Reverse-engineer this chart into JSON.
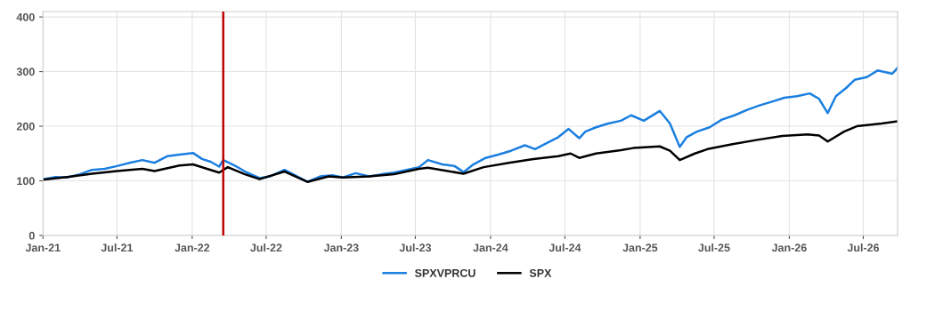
{
  "chart_data": {
    "type": "line",
    "xlim": [
      "2021-01-01",
      "2026-09-23"
    ],
    "xticks": [
      {
        "value": "2021-01-01",
        "label": "Jan-21"
      },
      {
        "value": "2021-07-01",
        "label": "Jul-21"
      },
      {
        "value": "2022-01-01",
        "label": "Jan-22"
      },
      {
        "value": "2022-07-01",
        "label": "Jul-22"
      },
      {
        "value": "2023-01-01",
        "label": "Jan-23"
      },
      {
        "value": "2023-07-01",
        "label": "Jul-23"
      },
      {
        "value": "2024-01-01",
        "label": "Jan-24"
      },
      {
        "value": "2024-07-01",
        "label": "Jul-24"
      },
      {
        "value": "2025-01-01",
        "label": "Jan-25"
      },
      {
        "value": "2025-07-01",
        "label": "Jul-25"
      },
      {
        "value": "2026-01-01",
        "label": "Jan-26"
      },
      {
        "value": "2026-07-01",
        "label": "Jul-26"
      }
    ],
    "ylim": [
      0,
      410
    ],
    "yticks": [
      0,
      100,
      200,
      300,
      400
    ],
    "grid": true,
    "legend": "bottom",
    "marker": "none",
    "line_style": "solid",
    "ref_lines": [
      {
        "axis": "x",
        "value": "2022-03-18",
        "color": "#c00000"
      }
    ],
    "series": [
      {
        "name": "SPXVPRCU",
        "color": "#1a7fe0",
        "x": [
          "2021-01-01",
          "2021-02-01",
          "2021-03-01",
          "2021-04-01",
          "2021-05-01",
          "2021-06-01",
          "2021-07-01",
          "2021-08-01",
          "2021-09-01",
          "2021-10-01",
          "2021-11-01",
          "2021-12-01",
          "2022-01-03",
          "2022-01-25",
          "2022-02-15",
          "2022-03-08",
          "2022-03-18",
          "2022-04-15",
          "2022-05-15",
          "2022-06-15",
          "2022-07-10",
          "2022-08-15",
          "2022-09-10",
          "2022-10-10",
          "2022-11-10",
          "2022-12-10",
          "2023-01-05",
          "2023-02-05",
          "2023-03-10",
          "2023-04-10",
          "2023-05-10",
          "2023-06-10",
          "2023-07-10",
          "2023-08-01",
          "2023-09-05",
          "2023-10-05",
          "2023-10-27",
          "2023-11-20",
          "2023-12-20",
          "2024-01-20",
          "2024-02-20",
          "2024-03-25",
          "2024-04-19",
          "2024-05-15",
          "2024-06-15",
          "2024-07-10",
          "2024-08-05",
          "2024-08-20",
          "2024-09-15",
          "2024-10-15",
          "2024-11-15",
          "2024-12-10",
          "2025-01-10",
          "2025-02-18",
          "2025-03-15",
          "2025-04-08",
          "2025-04-25",
          "2025-05-20",
          "2025-06-20",
          "2025-07-20",
          "2025-08-20",
          "2025-09-20",
          "2025-10-20",
          "2025-11-20",
          "2025-12-20",
          "2026-01-20",
          "2026-02-20",
          "2026-03-15",
          "2026-04-05",
          "2026-04-25",
          "2026-05-20",
          "2026-06-10",
          "2026-07-10",
          "2026-08-05",
          "2026-09-10",
          "2026-09-23"
        ],
        "values": [
          103,
          107,
          106,
          112,
          120,
          122,
          127,
          133,
          138,
          133,
          145,
          148,
          151,
          140,
          135,
          126,
          138,
          128,
          115,
          105,
          108,
          120,
          110,
          98,
          108,
          110,
          106,
          114,
          108,
          112,
          115,
          120,
          125,
          138,
          130,
          127,
          116,
          130,
          142,
          148,
          155,
          165,
          158,
          168,
          180,
          195,
          178,
          190,
          198,
          205,
          210,
          220,
          210,
          228,
          205,
          162,
          180,
          190,
          198,
          212,
          220,
          230,
          238,
          245,
          252,
          255,
          260,
          250,
          224,
          255,
          270,
          285,
          290,
          302,
          296,
          307
        ]
      },
      {
        "name": "SPX",
        "color": "#000000",
        "x": [
          "2021-01-01",
          "2021-03-01",
          "2021-05-01",
          "2021-07-01",
          "2021-09-01",
          "2021-10-01",
          "2021-12-01",
          "2022-01-03",
          "2022-02-15",
          "2022-03-08",
          "2022-03-29",
          "2022-05-10",
          "2022-06-15",
          "2022-08-15",
          "2022-10-10",
          "2022-12-01",
          "2023-01-05",
          "2023-03-10",
          "2023-05-10",
          "2023-07-10",
          "2023-08-01",
          "2023-10-27",
          "2023-12-15",
          "2024-02-15",
          "2024-04-15",
          "2024-06-15",
          "2024-07-15",
          "2024-08-05",
          "2024-09-15",
          "2024-11-15",
          "2024-12-15",
          "2025-02-18",
          "2025-03-15",
          "2025-04-08",
          "2025-05-15",
          "2025-06-15",
          "2025-08-15",
          "2025-10-15",
          "2025-12-15",
          "2026-02-15",
          "2026-03-15",
          "2026-04-05",
          "2026-05-15",
          "2026-06-15",
          "2026-08-15",
          "2026-09-23"
        ],
        "values": [
          102,
          107,
          113,
          118,
          122,
          118,
          128,
          130,
          120,
          115,
          125,
          112,
          103,
          117,
          98,
          108,
          106,
          108,
          112,
          122,
          124,
          113,
          125,
          133,
          140,
          145,
          150,
          142,
          150,
          156,
          160,
          163,
          155,
          138,
          150,
          158,
          167,
          175,
          182,
          185,
          183,
          172,
          190,
          200,
          205,
          209
        ]
      }
    ]
  }
}
